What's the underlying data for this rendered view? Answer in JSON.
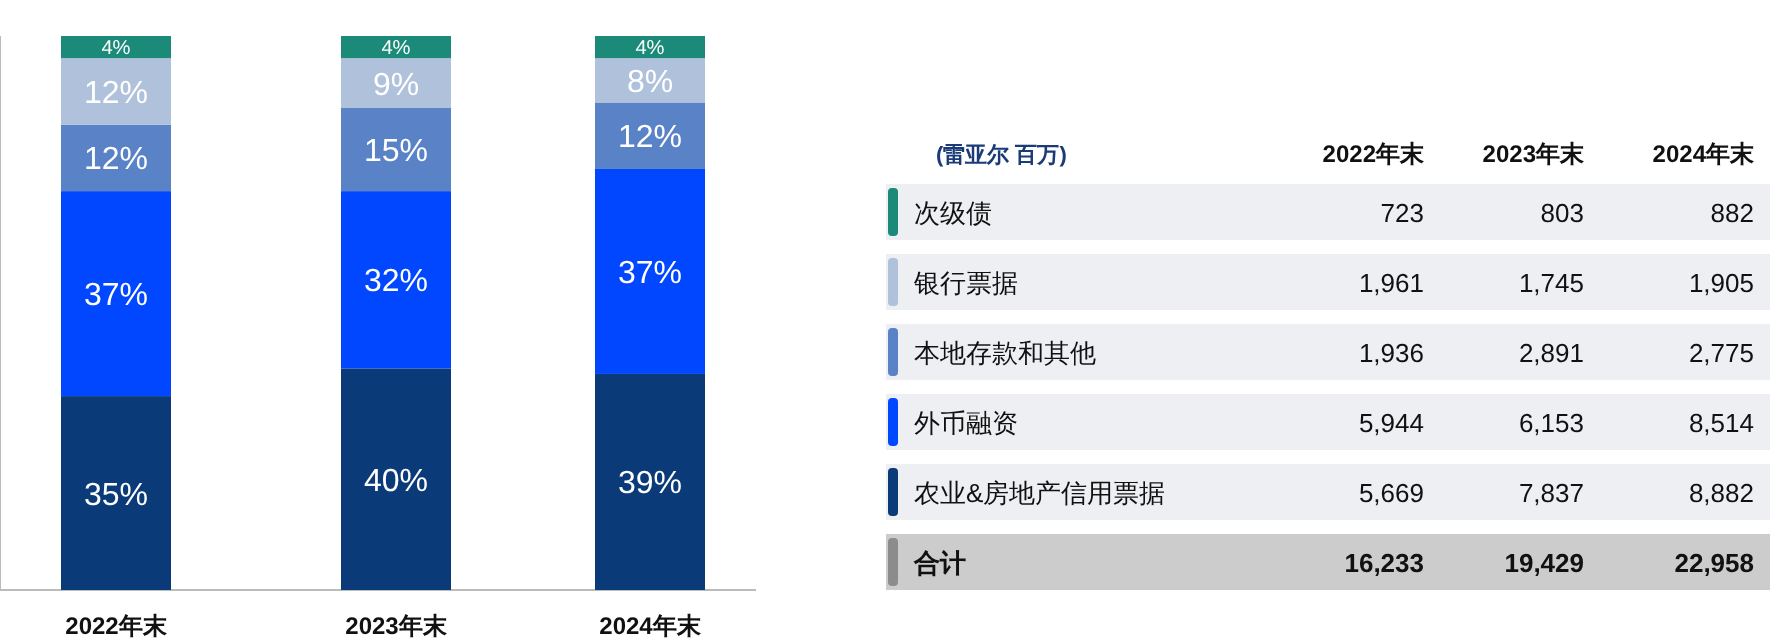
{
  "chart_data": [
    {
      "type": "bar",
      "stacked": true,
      "categories": [
        "2022年末",
        "2023年末",
        "2024年末"
      ],
      "tick_labels": "x",
      "series": [
        {
          "color": "#0b3a78",
          "values": [
            35,
            40,
            39
          ],
          "value_labels": [
            "35%",
            "40%",
            "39%"
          ]
        },
        {
          "color": "#0047ff",
          "values": [
            37,
            32,
            37
          ],
          "value_labels": [
            "37%",
            "32%",
            "37%"
          ]
        },
        {
          "color": "#5a82c6",
          "values": [
            12,
            15,
            12
          ],
          "value_labels": [
            "12%",
            "15%",
            "12%"
          ]
        },
        {
          "color": "#b0c1dc",
          "values": [
            12,
            9,
            8
          ],
          "value_labels": [
            "12%",
            "9%",
            "8%"
          ]
        },
        {
          "color": "#1b8a78",
          "values": [
            4,
            4,
            4
          ],
          "value_labels": [
            "4%",
            "4%",
            "4%"
          ]
        }
      ]
    },
    {
      "type": "other",
      "title": "(雷亚尔 百万)",
      "categories": [
        "2022年末",
        "2023年末",
        "2024年末"
      ],
      "y_categories": [
        "次级债",
        "银行票据",
        "本地存款和其他",
        "外币融资",
        "农业&房地产信用票据",
        "合计"
      ],
      "colors": [
        "#1b8a78",
        "#b0c1dc",
        "#5a82c6",
        "#0047ff",
        "#0b3a78",
        "#8c8c8c"
      ],
      "cells": [
        [
          "723",
          "803",
          "882"
        ],
        [
          "1,961",
          "1,745",
          "1,905"
        ],
        [
          "1,936",
          "2,891",
          "2,775"
        ],
        [
          "5,944",
          "6,153",
          "8,514"
        ],
        [
          "5,669",
          "7,837",
          "8,882"
        ],
        [
          "16,233",
          "19,429",
          "22,958"
        ]
      ]
    }
  ]
}
